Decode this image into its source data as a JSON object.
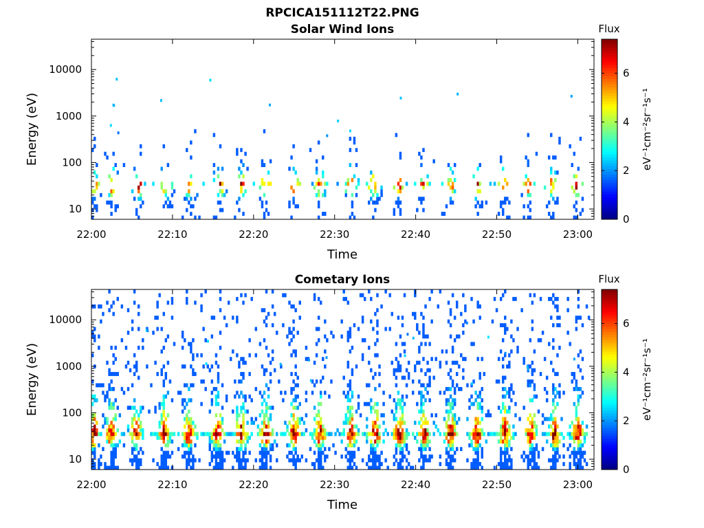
{
  "figure_title": "RPCICA151112T22.PNG",
  "chart_data": [
    {
      "type": "heatmap",
      "title": "Solar Wind Ions",
      "xlabel": "Time",
      "ylabel": "Energy (eV)",
      "x_tick_labels": [
        "22:00",
        "22:10",
        "22:20",
        "22:30",
        "22:40",
        "22:50",
        "23:00"
      ],
      "x_ticks_minutes": [
        0,
        10,
        20,
        30,
        40,
        50,
        60
      ],
      "xlim_minutes": [
        0,
        62
      ],
      "y_scale": "log",
      "y_tick_labels": [
        "10",
        "100",
        "1000",
        "10000"
      ],
      "y_ticks": [
        10,
        100,
        1000,
        10000
      ],
      "ylim": [
        6,
        45000
      ],
      "colorbar": {
        "title": "Flux",
        "label": "eV⁻¹cm⁻²sr⁻¹s⁻¹",
        "range": [
          0,
          7.4
        ],
        "tick_labels": [
          "0",
          "2",
          "4",
          "6"
        ],
        "ticks": [
          0,
          2,
          4,
          6
        ],
        "colormap": "jet"
      },
      "grid": false,
      "burst_times_minutes": [
        0.3,
        2.5,
        5.8,
        9.2,
        12.2,
        15.8,
        18.5,
        21.5,
        25.0,
        28.2,
        32.0,
        34.8,
        38.0,
        41.0,
        44.3,
        47.5,
        50.8,
        54.0,
        56.8,
        59.8
      ],
      "peak_energy_eV": 35,
      "peak_flux": 6.2
    },
    {
      "type": "heatmap",
      "title": "Cometary Ions",
      "xlabel": "Time",
      "ylabel": "Energy (eV)",
      "x_tick_labels": [
        "22:00",
        "22:10",
        "22:20",
        "22:30",
        "22:40",
        "22:50",
        "23:00"
      ],
      "x_ticks_minutes": [
        0,
        10,
        20,
        30,
        40,
        50,
        60
      ],
      "xlim_minutes": [
        0,
        62
      ],
      "y_scale": "log",
      "y_tick_labels": [
        "10",
        "100",
        "1000",
        "10000"
      ],
      "y_ticks": [
        10,
        100,
        1000,
        10000
      ],
      "ylim": [
        6,
        45000
      ],
      "colorbar": {
        "title": "Flux",
        "label": "eV⁻¹cm⁻²sr⁻¹s⁻¹",
        "range": [
          0,
          7.4
        ],
        "tick_labels": [
          "0",
          "2",
          "4",
          "6"
        ],
        "ticks": [
          0,
          2,
          4,
          6
        ],
        "colormap": "jet"
      },
      "grid": false,
      "burst_times_minutes": [
        0.3,
        2.5,
        5.5,
        9.0,
        12.0,
        15.5,
        18.5,
        21.5,
        25.0,
        28.2,
        32.0,
        35.0,
        38.0,
        41.0,
        44.3,
        47.5,
        51.0,
        54.2,
        57.2,
        60.0
      ],
      "peak_energy_eV": 35,
      "peak_flux": 7.2
    }
  ]
}
